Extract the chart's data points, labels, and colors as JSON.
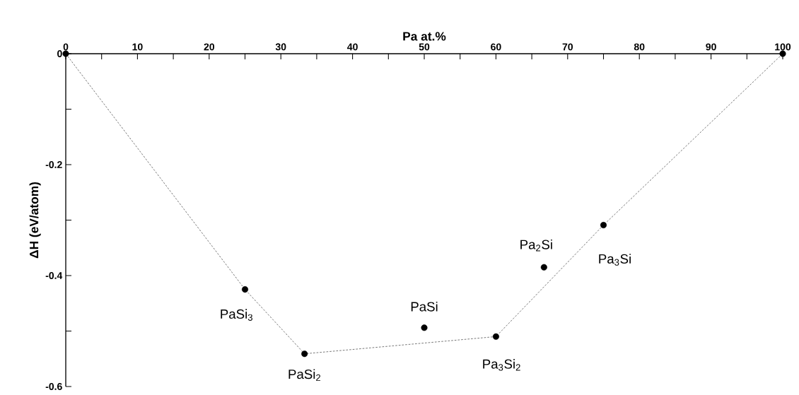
{
  "chart_data": {
    "type": "scatter",
    "xlabel": "Pa at.%",
    "ylabel": "ΔH (eV/atom)",
    "xlim": [
      0,
      100
    ],
    "ylim": [
      -0.6,
      0
    ],
    "xticks": [
      0,
      {
        "value": 5,
        "label": null
      },
      10,
      {
        "value": 15,
        "label": null
      },
      20,
      {
        "value": 25,
        "label": null
      },
      30,
      {
        "value": 35,
        "label": null
      },
      40,
      {
        "value": 45,
        "label": null
      },
      50,
      {
        "value": 55,
        "label": null
      },
      60,
      {
        "value": 65,
        "label": null
      },
      70,
      {
        "value": 75,
        "label": null
      },
      80,
      {
        "value": 85,
        "label": null
      },
      90,
      {
        "value": 95,
        "label": null
      },
      100
    ],
    "yticks": [
      0,
      {
        "value": -0.1,
        "label": null
      },
      -0.2,
      {
        "value": -0.3,
        "label": null
      },
      -0.4,
      {
        "value": -0.5,
        "label": null
      },
      -0.6
    ],
    "marker": "circle",
    "series": [
      {
        "type": "line",
        "color": "#555555",
        "line_style": "dashed",
        "marker": "none",
        "x": [
          0,
          25,
          33.3,
          60,
          75,
          100
        ],
        "values": [
          0,
          -0.425,
          -0.541,
          -0.51,
          -0.309,
          0
        ]
      },
      {
        "color": "#000000",
        "x": [
          0,
          25,
          33.3,
          50,
          60,
          66.7,
          75,
          100
        ],
        "values": [
          0,
          -0.425,
          -0.541,
          -0.494,
          -0.51,
          -0.385,
          -0.309,
          0
        ]
      }
    ],
    "annotations": [
      {
        "text": "PaSi$_{3}$",
        "x": 25,
        "y": -0.425
      },
      {
        "text": "PaSi$_{2}$",
        "x": 33.3,
        "y": -0.541
      },
      {
        "text": "PaSi",
        "x": 50,
        "y": -0.494
      },
      {
        "text": "Pa$_{3}$Si$_{2}$",
        "x": 60,
        "y": -0.51
      },
      {
        "text": "Pa$_{2}$Si",
        "x": 66.7,
        "y": -0.385
      },
      {
        "text": "Pa$_{3}$Si",
        "x": 75,
        "y": -0.309
      }
    ]
  }
}
